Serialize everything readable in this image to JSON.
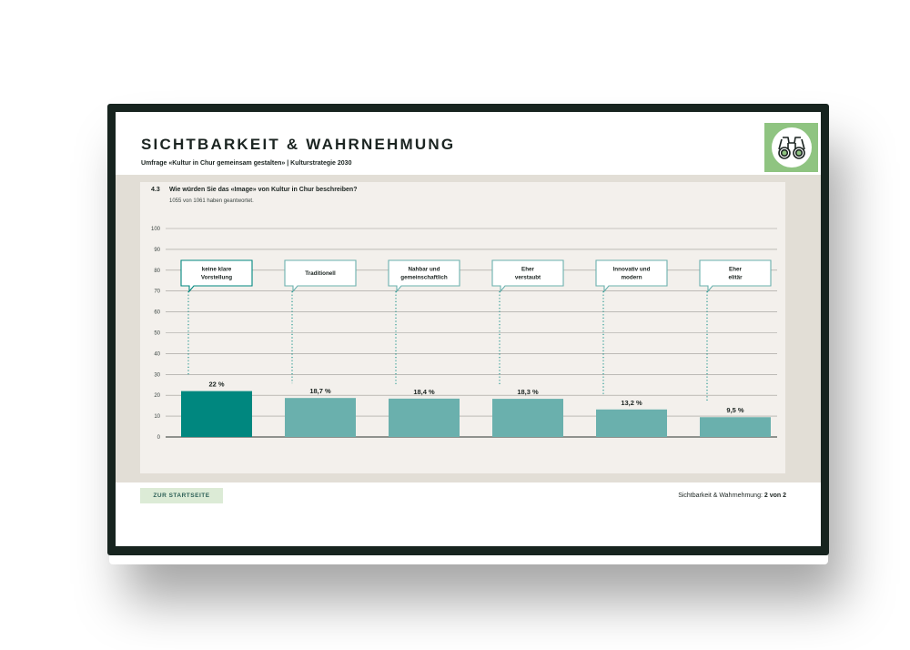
{
  "header": {
    "title": "SICHTBARKEIT & WAHRNEHMUNG",
    "subtitle": "Umfrage «Kultur in Chur gemeinsam gestalten» | Kulturstrategie 2030",
    "logo_icon": "binoculars-icon",
    "logo_bg": "#8fc481"
  },
  "question": {
    "number": "4.3",
    "text": "Wie würden Sie das «Image» von Kultur in Chur beschreiben?",
    "note": "1055 von 1061 haben geantwortet."
  },
  "chart_data": {
    "type": "bar",
    "categories": [
      [
        "keine klare",
        "Vorstellung"
      ],
      [
        "Traditionell"
      ],
      [
        "Nahbar und",
        "gemeinschaftlich"
      ],
      [
        "Eher",
        "verstaubt"
      ],
      [
        "Innovativ und",
        "modern"
      ],
      [
        "Eher",
        "elitär"
      ]
    ],
    "values": [
      22,
      18.7,
      18.4,
      18.3,
      13.2,
      9.5
    ],
    "value_labels": [
      "22 %",
      "18,7 %",
      "18,4 %",
      "18,3 %",
      "13,2 %",
      "9,5 %"
    ],
    "ylim": [
      0,
      100
    ],
    "yticks": [
      0,
      10,
      20,
      30,
      40,
      50,
      60,
      70,
      80,
      90,
      100
    ],
    "grid": true,
    "highlight_color": "#00877f",
    "bar_color": "#6ab0ad"
  },
  "footer": {
    "button_label": "ZUR STARTSEITE",
    "section_label": "Sichtbarkeit & Wahrnehmung:",
    "page_label": "2 von 2"
  }
}
